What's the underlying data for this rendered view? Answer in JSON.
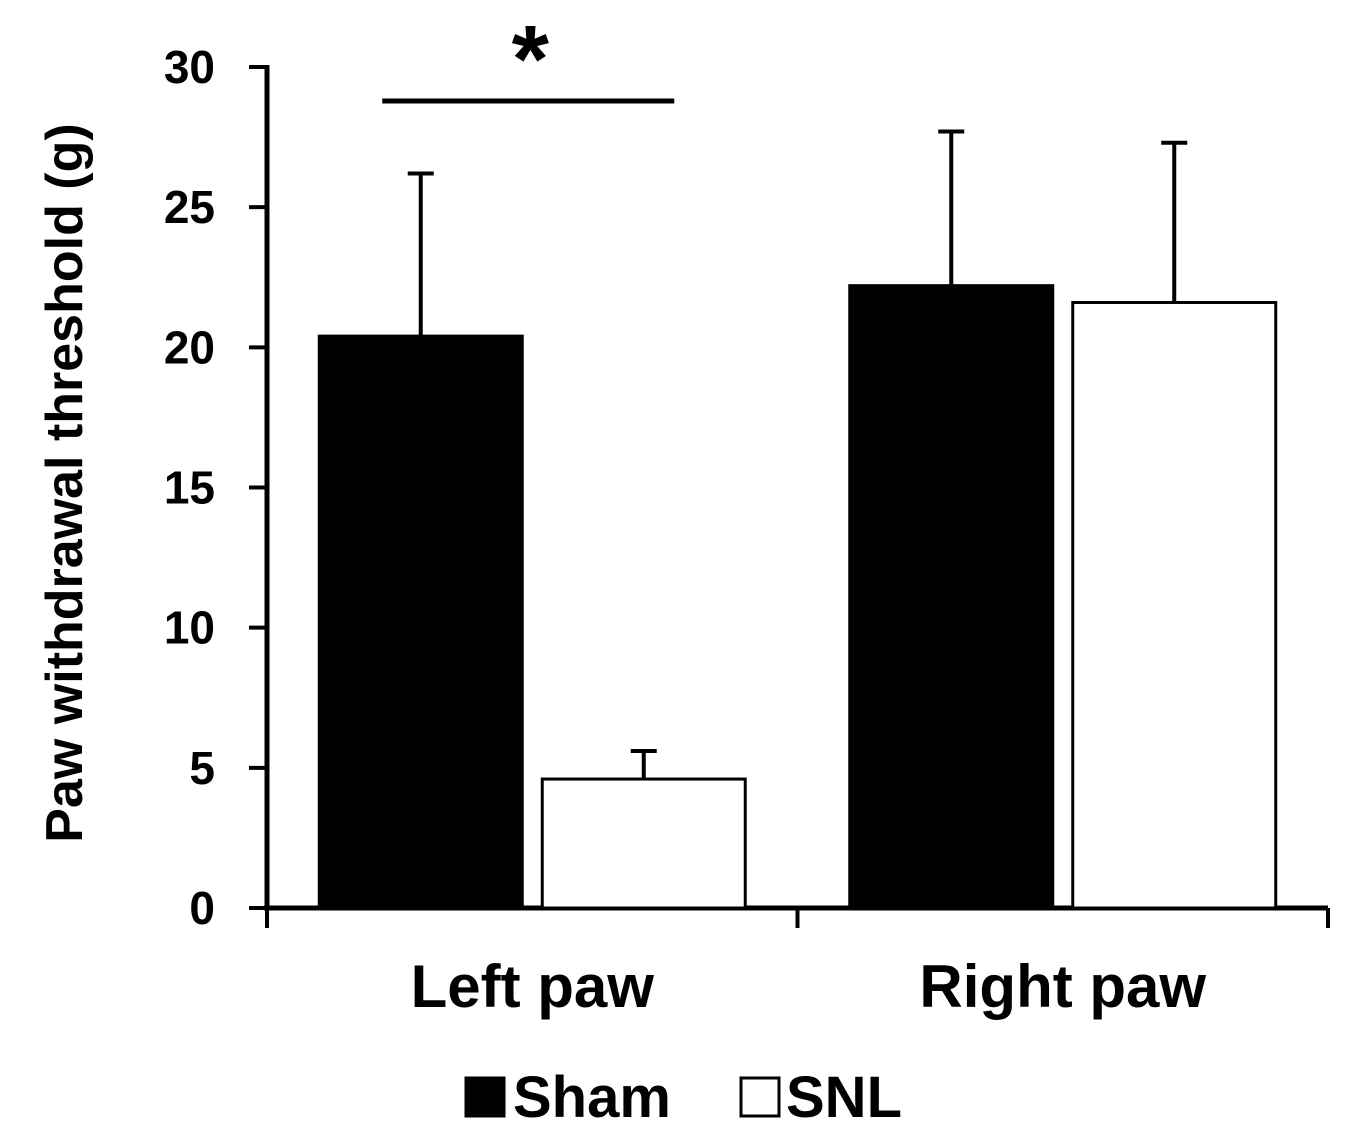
{
  "chart_data": {
    "type": "bar",
    "title": "",
    "xlabel": "",
    "ylabel": "Paw withdrawal threshold (g)",
    "ylim": [
      0,
      30
    ],
    "yticks": [
      0,
      5,
      10,
      15,
      20,
      25,
      30
    ],
    "categories": [
      "Left paw",
      "Right paw"
    ],
    "series": [
      {
        "name": "Sham",
        "values": [
          20.4,
          22.2
        ],
        "errors": [
          5.8,
          5.5
        ],
        "color": "#000000"
      },
      {
        "name": "SNL",
        "values": [
          4.6,
          21.6
        ],
        "errors": [
          1.0,
          5.7
        ],
        "color": "#ffffff"
      }
    ],
    "legend_position": "bottom",
    "grid": false,
    "annotations": [
      {
        "text": "*",
        "category": "Left paw",
        "type": "significance-bracket"
      }
    ]
  }
}
